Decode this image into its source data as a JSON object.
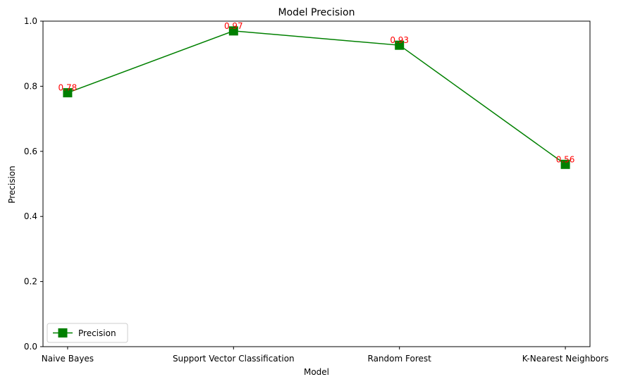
{
  "chart_data": {
    "type": "line",
    "title": "Model Precision",
    "xlabel": "Model",
    "ylabel": "Precision",
    "categories": [
      "Naive Bayes",
      "Support Vector Classification",
      "Random Forest",
      "K-Nearest Neighbors"
    ],
    "series": [
      {
        "name": "Precision",
        "values": [
          0.78,
          0.97,
          0.926,
          0.56
        ],
        "data_labels": [
          "0.78",
          "0.97",
          "0.93",
          "0.56"
        ],
        "color": "#008000",
        "marker": "square",
        "label_color": "#ff0000"
      }
    ],
    "ylim": [
      0,
      1.0
    ],
    "yticks": [
      0.0,
      0.2,
      0.4,
      0.6,
      0.8,
      1.0
    ],
    "ytick_labels": [
      "0.0",
      "0.2",
      "0.4",
      "0.6",
      "0.8",
      "1.0"
    ],
    "grid": false,
    "legend": {
      "position": "lower-left",
      "entries": [
        "Precision"
      ]
    }
  }
}
